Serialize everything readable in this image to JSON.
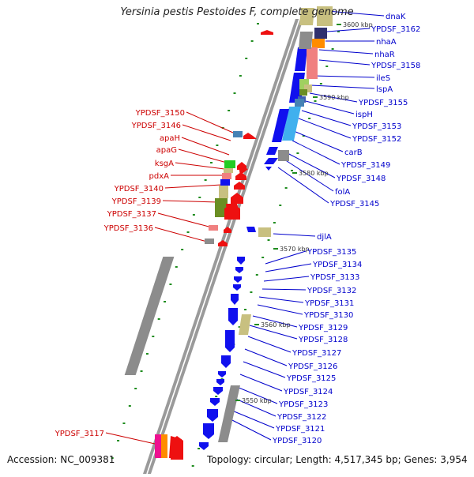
{
  "title": "Yersinia pestis Pestoides F, complete genome",
  "footer": {
    "accession": "Accession: NC_009381",
    "topology": "Topology: circular; Length: 4,517,345 bp; Genes: 3,954"
  },
  "colors": {
    "plus_label": "#0000cc",
    "minus_label": "#cc0000",
    "backbone": "#9a9a9a",
    "gene_blue": "#1010ee",
    "gene_red": "#ee1010",
    "gene_gray": "#8c8c8c",
    "gene_khaki": "#c8c080",
    "gene_olive": "#6b8e23",
    "gene_pink": "#f08080",
    "gene_lightblue": "#40b0ee",
    "gene_steel": "#4682b4",
    "gene_orange": "#ff8c00",
    "gene_magenta": "#ee1090",
    "gene_green": "#22cc22",
    "kbp_tick": "#1e8c1e"
  },
  "kbp_marks": [
    "3600 kbp",
    "3590 kbp",
    "3580 kbp",
    "3570 kbp",
    "3560 kbp",
    "3550 kbp"
  ],
  "labels_plus": [
    "dnaK",
    "YPDSF_3162",
    "nhaA",
    "nhaR",
    "YPDSF_3158",
    "ileS",
    "lspA",
    "YPDSF_3155",
    "ispH",
    "YPDSF_3153",
    "YPDSF_3152",
    "carB",
    "YPDSF_3149",
    "YPDSF_3148",
    "folA",
    "YPDSF_3145",
    "djlA",
    "YPDSF_3135",
    "YPDSF_3134",
    "YPDSF_3133",
    "YPDSF_3132",
    "YPDSF_3131",
    "YPDSF_3130",
    "YPDSF_3129",
    "YPDSF_3128",
    "YPDSF_3127",
    "YPDSF_3126",
    "YPDSF_3125",
    "YPDSF_3124",
    "YPDSF_3123",
    "YPDSF_3122",
    "YPDSF_3121",
    "YPDSF_3120"
  ],
  "labels_minus": [
    "YPDSF_3150",
    "YPDSF_3146",
    "apaH",
    "apaG",
    "ksgA",
    "pdxA",
    "YPDSF_3140",
    "YPDSF_3139",
    "YPDSF_3137",
    "YPDSF_3136",
    "YPDSF_3117"
  ]
}
